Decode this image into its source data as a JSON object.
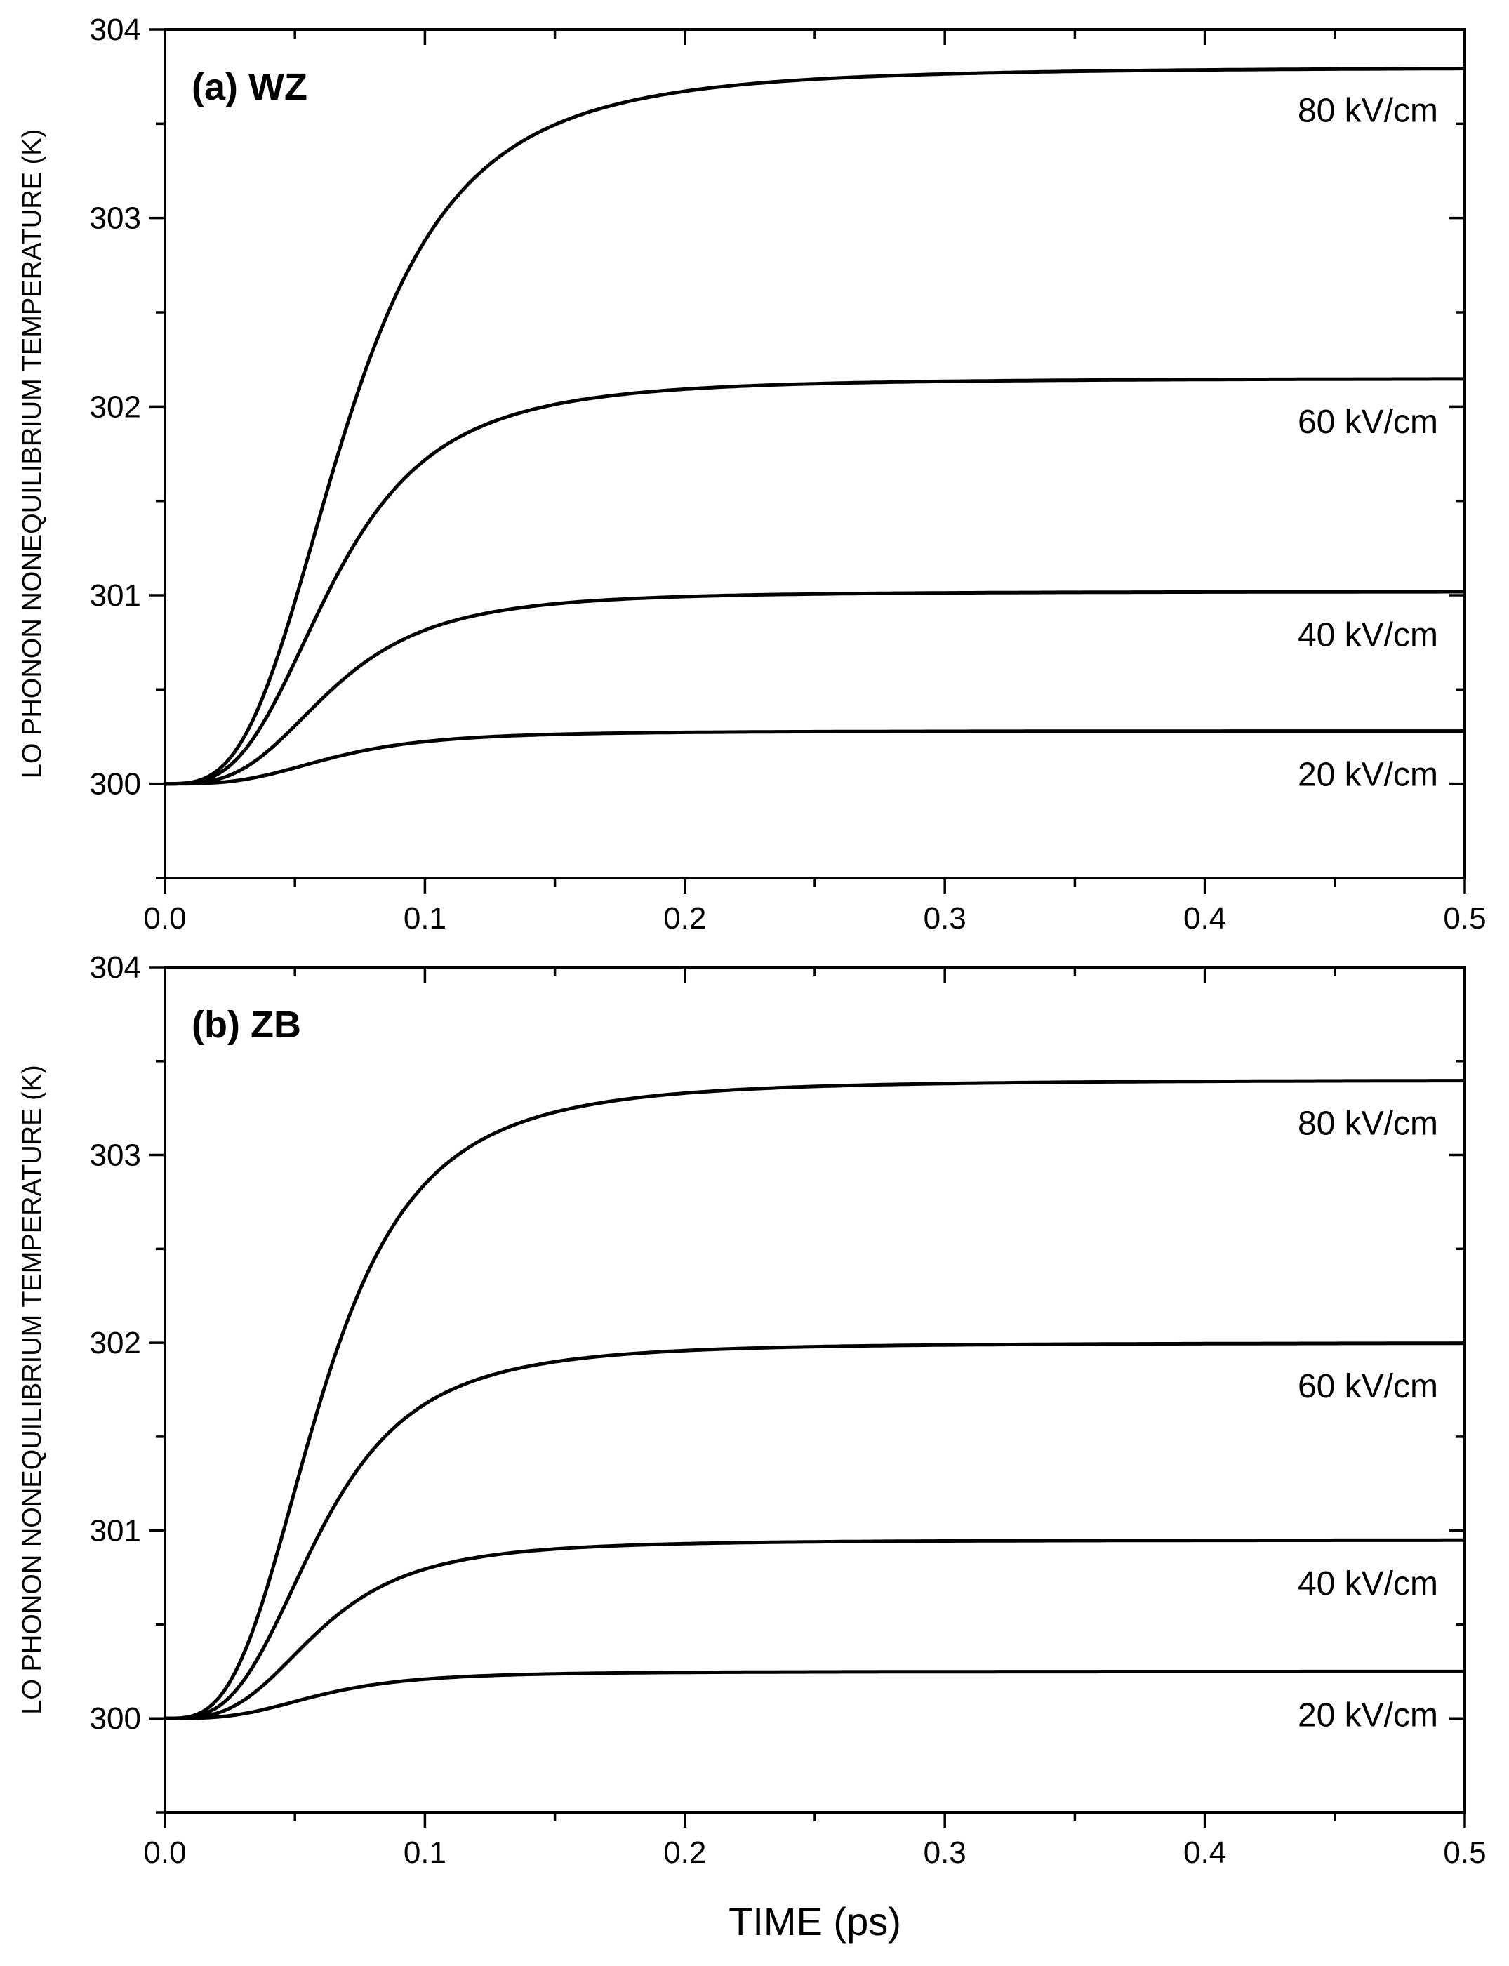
{
  "chart_data": [
    {
      "type": "line",
      "panel_title": "(a) WZ",
      "ylabel": "LO PHONON NONEQUILIBRIUM TEMPERATURE (K)",
      "xlabel": "",
      "xlim": [
        0.0,
        0.5
      ],
      "ylim": [
        299.5,
        304
      ],
      "x_ticks": [
        "0.0",
        "0.1",
        "0.2",
        "0.3",
        "0.4",
        "0.5"
      ],
      "y_ticks": [
        "300",
        "301",
        "302",
        "303",
        "304"
      ],
      "grid": false,
      "series": [
        {
          "name": "80 kV/cm",
          "baseline": 300,
          "final": 303.8,
          "half_time_ps": 0.07
        },
        {
          "name": "60 kV/cm",
          "baseline": 300,
          "final": 302.15,
          "half_time_ps": 0.065
        },
        {
          "name": "40 kV/cm",
          "baseline": 300,
          "final": 301.02,
          "half_time_ps": 0.065
        },
        {
          "name": "20 kV/cm",
          "baseline": 300,
          "final": 300.28,
          "half_time_ps": 0.065
        }
      ]
    },
    {
      "type": "line",
      "panel_title": "(b) ZB",
      "ylabel": "LO PHONON NONEQUILIBRIUM TEMPERATURE (K)",
      "xlabel": "TIME (ps)",
      "xlim": [
        0.0,
        0.5
      ],
      "ylim": [
        299.5,
        304
      ],
      "x_ticks": [
        "0.0",
        "0.1",
        "0.2",
        "0.3",
        "0.4",
        "0.5"
      ],
      "y_ticks": [
        "300",
        "301",
        "302",
        "303",
        "304"
      ],
      "grid": false,
      "series": [
        {
          "name": "80 kV/cm",
          "baseline": 300,
          "final": 303.4,
          "half_time_ps": 0.06
        },
        {
          "name": "60 kV/cm",
          "baseline": 300,
          "final": 302.0,
          "half_time_ps": 0.06
        },
        {
          "name": "40 kV/cm",
          "baseline": 300,
          "final": 300.95,
          "half_time_ps": 0.06
        },
        {
          "name": "20 kV/cm",
          "baseline": 300,
          "final": 300.25,
          "half_time_ps": 0.06
        }
      ]
    }
  ]
}
